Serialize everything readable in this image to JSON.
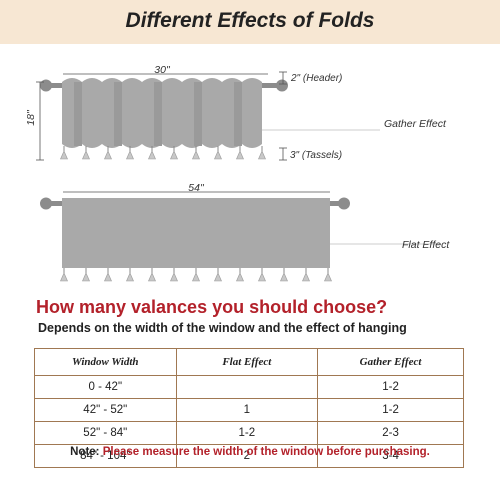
{
  "header": {
    "title": "Different Effects of Folds"
  },
  "diagram": {
    "gather": {
      "width_label": "30\"",
      "height_label": "18\"",
      "header_label": "2\" (Header)",
      "tassel_label": "3\" (Tassels)",
      "effect_label": "Gather Effect",
      "tassel_count": 10
    },
    "flat": {
      "width_label": "54\"",
      "effect_label": "Flat Effect",
      "tassel_count": 13
    },
    "colors": {
      "fabric": "#a9a9a9",
      "rod": "#8c8c8c"
    }
  },
  "guide": {
    "question": "How many valances you should choose?",
    "subtitle": "Depends on the width of the window and the effect of hanging"
  },
  "table": {
    "headers": [
      "Window Width",
      "Flat Effect",
      "Gather Effect"
    ],
    "rows": [
      {
        "width": "0 - 42\"",
        "flat": "",
        "gather": "1-2"
      },
      {
        "width": "42\" - 52\"",
        "flat": "1",
        "gather": "1-2"
      },
      {
        "width": "52\" - 84\"",
        "flat": "1-2",
        "gather": "2-3"
      },
      {
        "width": "84\" - 104\"",
        "flat": "2",
        "gather": "3-4"
      }
    ]
  },
  "note": {
    "label": "Note:",
    "text": "Please measure the width of the window before purchasing."
  }
}
